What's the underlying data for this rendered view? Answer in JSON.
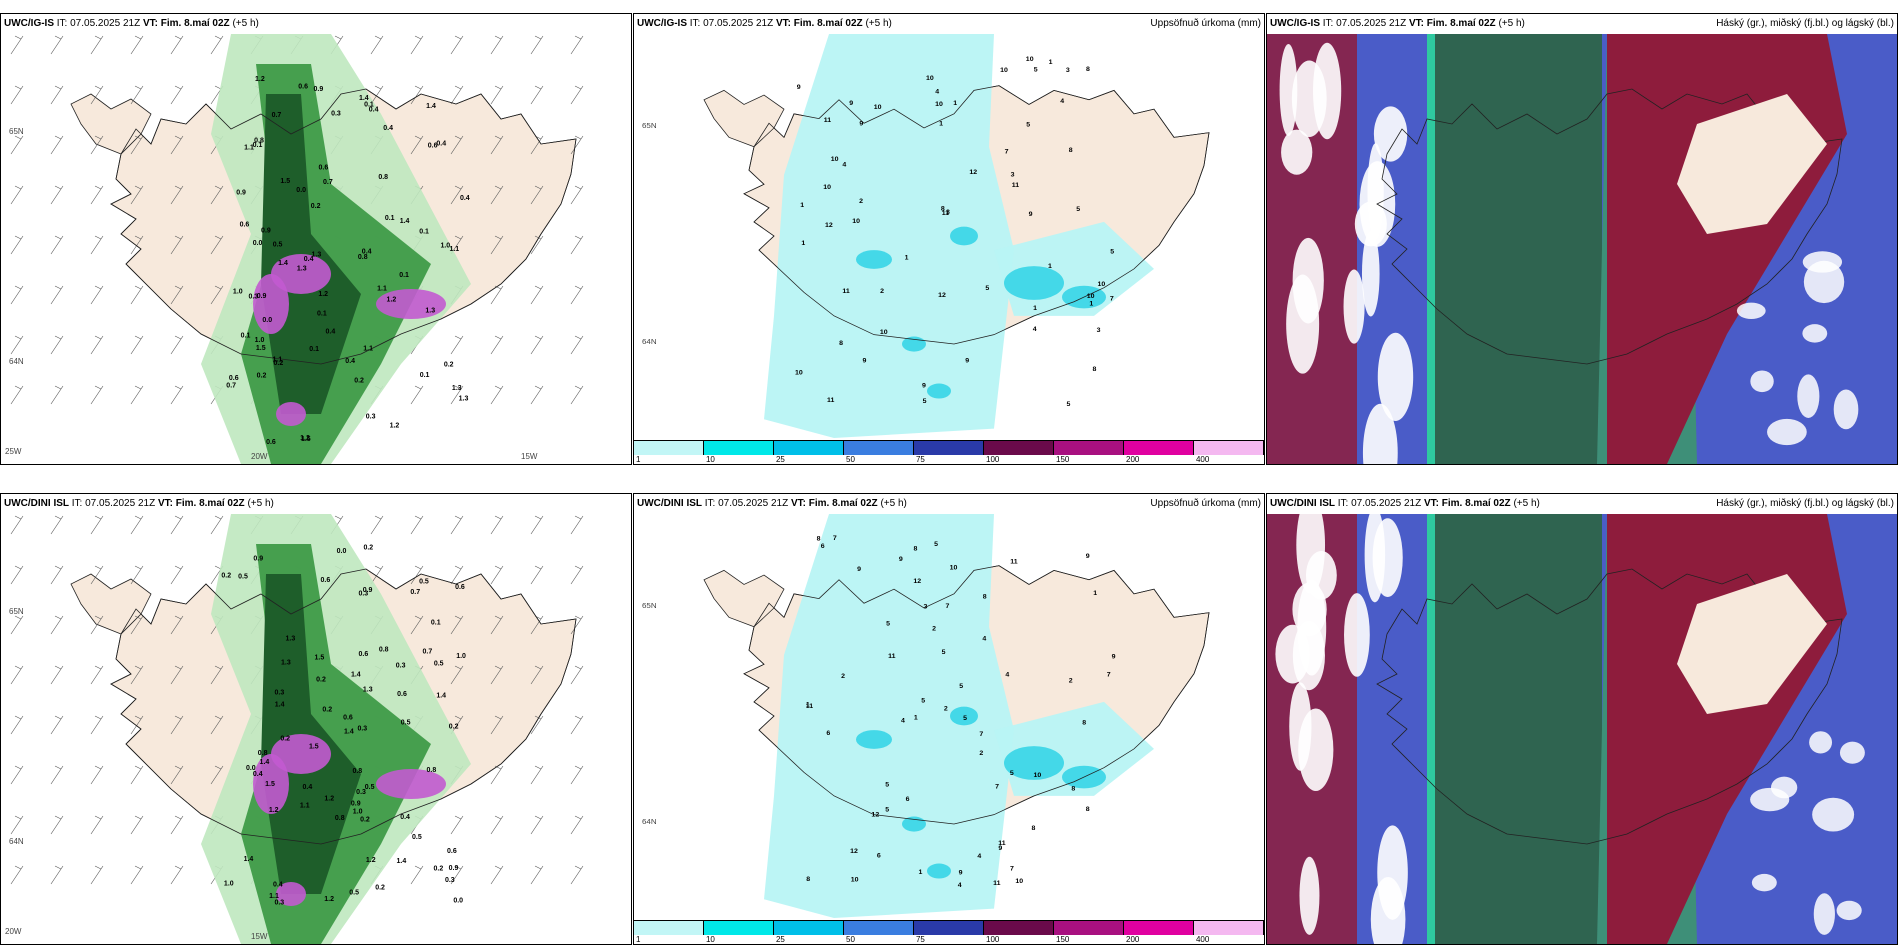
{
  "rows": [
    {
      "panels": [
        {
          "model": "UWC/IG-IS",
          "it": "IT: 07.05.2025 21Z",
          "vt_label": "VT:",
          "vt": "Fim. 8.maí 02Z",
          "lead": "(+5 h)",
          "right": "",
          "type": "cloud-wind",
          "axis_labels": [
            "65N",
            "64N",
            "25W",
            "20W",
            "15W"
          ]
        },
        {
          "model": "UWC/IG-IS",
          "it": "IT: 07.05.2025 21Z",
          "vt_label": "VT:",
          "vt": "Fim. 8.maí 02Z",
          "lead": "(+5 h)",
          "right": "Uppsöfnuð úrkoma (mm)",
          "type": "precip",
          "axis_labels": [
            "65N",
            "64N"
          ]
        },
        {
          "model": "UWC/IG-IS",
          "it": "IT: 07.05.2025 21Z",
          "vt_label": "VT:",
          "vt": "Fim. 8.maí 02Z",
          "lead": "(+5 h)",
          "right": "Háský (gr.), miðský (fj.bl.) og lágský (bl.)",
          "type": "cloud-layers",
          "axis_labels": []
        }
      ]
    },
    {
      "panels": [
        {
          "model": "UWC/DINI ISL",
          "it": "IT: 07.05.2025 21Z",
          "vt_label": "VT:",
          "vt": "Fim. 8.maí 02Z",
          "lead": "(+5 h)",
          "right": "",
          "type": "cloud-wind",
          "axis_labels": [
            "65N",
            "64N",
            "20W",
            "15W"
          ]
        },
        {
          "model": "UWC/DINI ISL",
          "it": "IT: 07.05.2025 21Z",
          "vt_label": "VT:",
          "vt": "Fim. 8.maí 02Z",
          "lead": "(+5 h)",
          "right": "Uppsöfnuð úrkoma (mm)",
          "type": "precip",
          "axis_labels": [
            "65N",
            "64N"
          ]
        },
        {
          "model": "UWC/DINI ISL",
          "it": "IT: 07.05.2025 21Z",
          "vt_label": "VT:",
          "vt": "Fim. 8.maí 02Z",
          "lead": "(+5 h)",
          "right": "Háský (gr.), miðský (fj.bl.) og lágský (bl.)",
          "type": "cloud-layers",
          "axis_labels": []
        }
      ]
    }
  ],
  "precip_legend": {
    "colors": [
      "#c2f6f6",
      "#00e8e8",
      "#00bfe8",
      "#3a7de0",
      "#2a3aa8",
      "#6a0a4a",
      "#a81080",
      "#e000a0",
      "#f4b8f0"
    ],
    "ticks": [
      "1",
      "10",
      "25",
      "50",
      "75",
      "100",
      "150",
      "200",
      "400"
    ]
  },
  "colors": {
    "land": "#f7e9dc",
    "sea": "#ffffff",
    "precip_light": "#b8f4f4",
    "precip_mid": "#44d8e8",
    "cloud_dark_green": "#1e5e2a",
    "cloud_mid_green": "#3f9b48",
    "cloud_light_green": "#bfe8bf",
    "cloud_purple": "#c25ad0",
    "high_cloud": "#2f6450",
    "mid_cloud_red": "#8e1c3c",
    "low_cloud_blue": "#4a5cc8"
  }
}
